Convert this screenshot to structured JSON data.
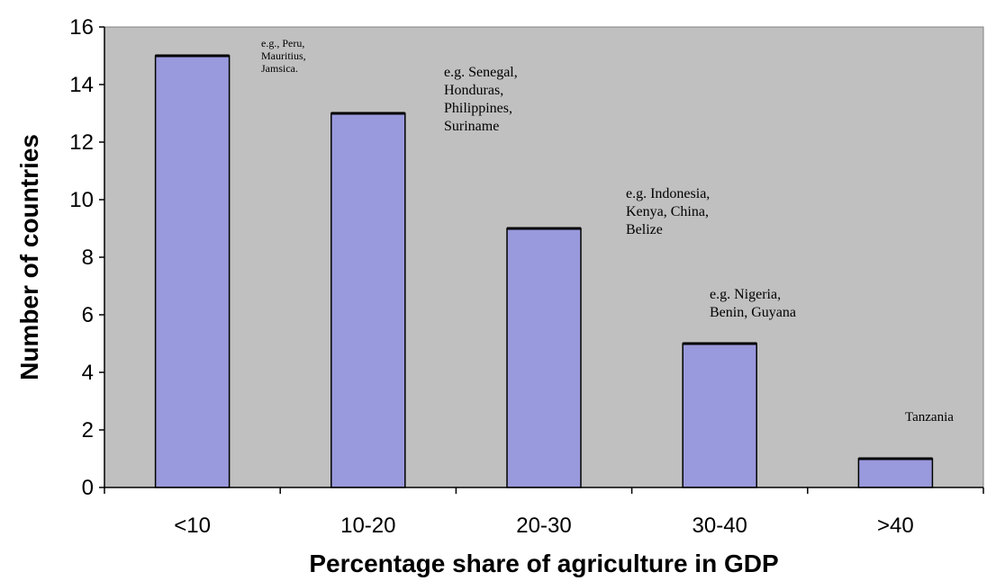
{
  "chart_data": {
    "type": "bar",
    "categories": [
      "<10",
      "10-20",
      "20-30",
      "30-40",
      ">40"
    ],
    "values": [
      15,
      13,
      9,
      5,
      1
    ],
    "title": "",
    "xlabel": "Percentage share of agriculture in GDP",
    "ylabel": "Number of countries",
    "ylim": [
      0,
      16
    ],
    "yticks": [
      "0",
      "2",
      "4",
      "6",
      "8",
      "10",
      "12",
      "14",
      "16"
    ],
    "grid": false,
    "legend": "none",
    "annotations": [
      {
        "category": "<10",
        "lines": [
          "e.g., Peru,",
          "Mauritius,",
          "Jamsica."
        ]
      },
      {
        "category": "10-20",
        "lines": [
          "e.g. Senegal,",
          "Honduras,",
          "Philippines,",
          "Suriname"
        ]
      },
      {
        "category": "20-30",
        "lines": [
          "e.g. Indonesia,",
          "Kenya, China,",
          "Belize"
        ]
      },
      {
        "category": "30-40",
        "lines": [
          "e.g. Nigeria,",
          "Benin, Guyana"
        ]
      },
      {
        "category": ">40",
        "lines": [
          "Tanzania"
        ]
      }
    ],
    "colors": {
      "bar_fill": "#9999dd",
      "bar_stroke": "#000000",
      "plot_background": "#c0c0c0"
    }
  }
}
